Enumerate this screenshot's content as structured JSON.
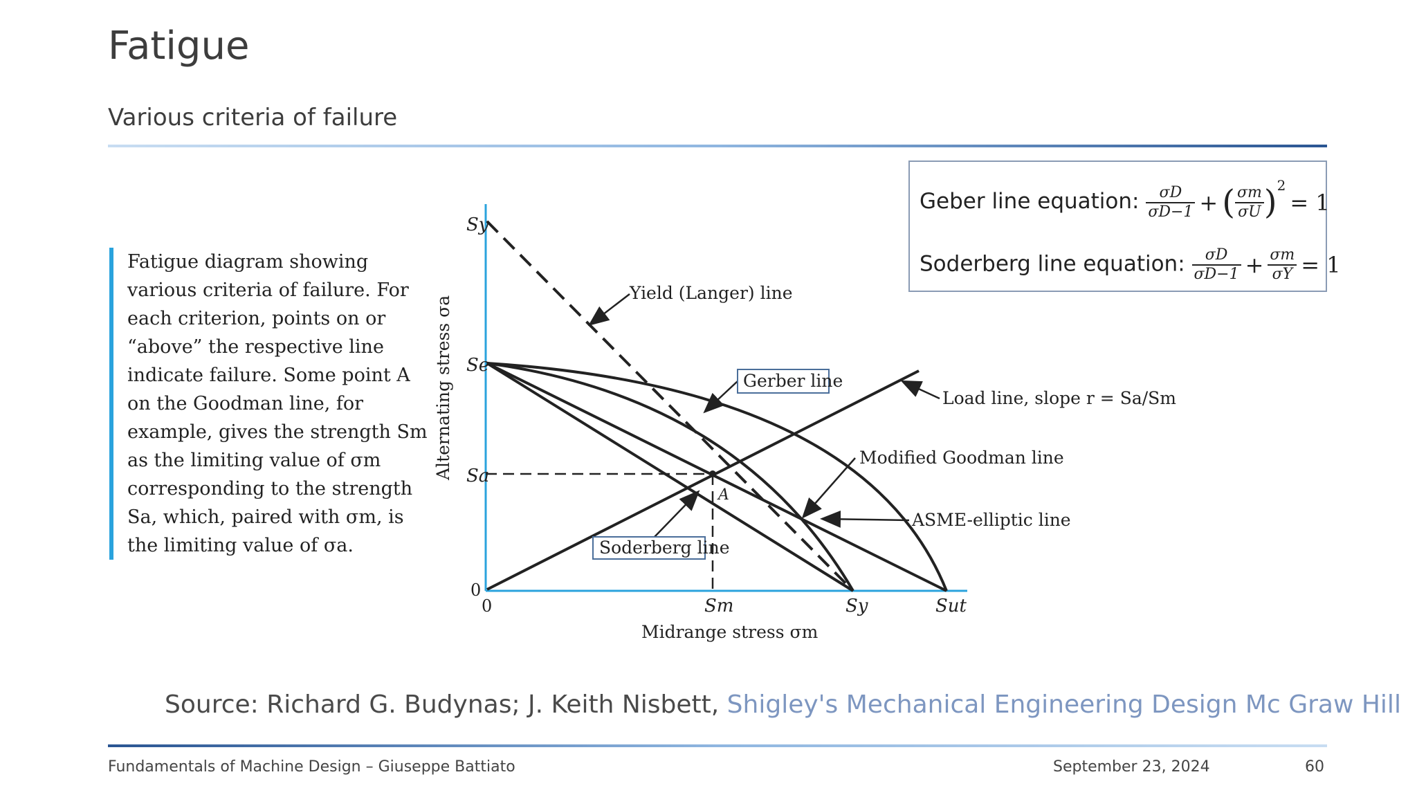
{
  "slide": {
    "title": "Fatigue",
    "subtitle": "Various criteria of failure"
  },
  "caption": {
    "lines": [
      "Fatigue diagram showing",
      "various criteria of failure. For",
      "each criterion, points on or",
      "“above” the respective line",
      "indicate failure. Some point A",
      "on the Goodman line, for",
      "example, gives the strength Sm",
      "as the limiting value of σm",
      "corresponding to the strength",
      "Sa, which, paired with σm, is",
      "the limiting value of σa."
    ]
  },
  "equations": {
    "geber_label": "Geber line equation:",
    "soderberg_label": "Soderberg line equation:",
    "sigma_D": "σD",
    "sigma_D_minus1": "σD−1",
    "sigma_m": "σm",
    "sigma_U": "σU",
    "sigma_Y": "σY",
    "plus": "+",
    "equals_one": "= 1",
    "exponent": "2"
  },
  "diagram": {
    "y_axis_label": "Alternating stress σa",
    "x_axis_label": "Midrange stress σm",
    "y_ticks": [
      "Sy",
      "Se",
      "Sa",
      "0"
    ],
    "x_ticks": [
      "0",
      "Sm",
      "Sy",
      "Sut"
    ],
    "point_label": "A",
    "lines": {
      "yield": "Yield (Langer) line",
      "gerber": "Gerber line",
      "load": "Load line, slope r = Sa/Sm",
      "goodman": "Modified Goodman line",
      "asme": "ASME-elliptic line",
      "soderberg": "Soderberg line"
    }
  },
  "source": {
    "prefix": "Source: Richard G. Budynas; J. Keith Nisbett, ",
    "link": "Shigley's Mechanical Engineering Design Mc Graw Hill"
  },
  "footer": {
    "left": "Fundamentals of Machine Design – Giuseppe Battiato",
    "date": "September 23, 2024",
    "page": "60"
  },
  "colors": {
    "accent_bar": "#2aa3dd",
    "link": "#7d96c0",
    "axis": "#2aa3dd"
  }
}
